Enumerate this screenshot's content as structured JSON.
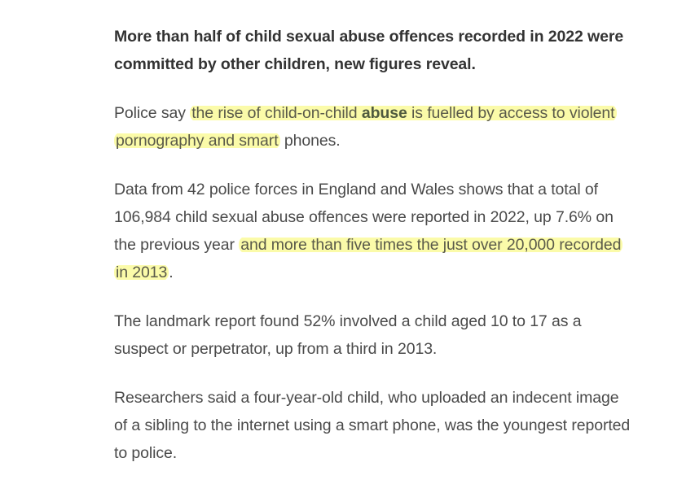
{
  "article": {
    "lead": "More than half of child sexual abuse offences recorded in 2022 were committed by other children, new figures reveal.",
    "p1": {
      "pre": "Police say ",
      "hl_a": "the rise of child-on-child ",
      "bold": "abuse",
      "hl_b": " is fuelled by access to violent pornography and smart",
      "post_a": " phones",
      "post_b": "."
    },
    "p2": {
      "pre": "Data from 42 police forces in England and Wales shows that a total of 106,984 child sexual abuse offences were reported in 2022, up 7.6% on the previous year ",
      "hl": "and more than five times the just over 20,000 recorded in 2013",
      "post": "."
    },
    "p3": "The landmark report found 52% involved a child aged 10 to 17 as a suspect or perpetrator, up from a third in 2013.",
    "p4": "Researchers said a four-year-old child, who uploaded an indecent image of a sibling to the internet using a smart phone, was the youngest reported to police."
  },
  "colors": {
    "text": "#4a4a4a",
    "highlight": "#fafa8c"
  }
}
